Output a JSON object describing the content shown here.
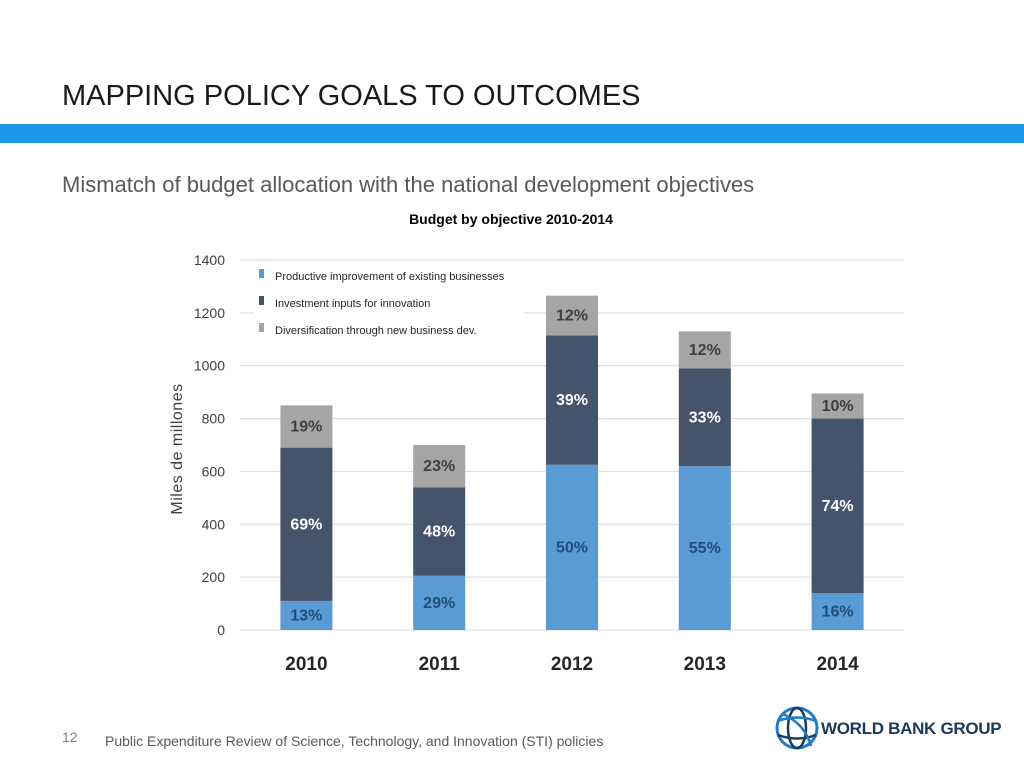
{
  "slide": {
    "title": "MAPPING POLICY GOALS TO OUTCOMES",
    "subtitle": "Mismatch of budget allocation with the national development objectives",
    "page_number": "12",
    "footer": "Public Expenditure Review of Science, Technology, and Innovation (STI) policies",
    "logo_text": "WORLD BANK GROUP"
  },
  "colors": {
    "accent_bar": "#1e96e8",
    "productive": "#5b9bd5",
    "investment": "#44546a",
    "diversification": "#a5a5a5"
  },
  "chart_data": {
    "type": "bar",
    "stacked": true,
    "title": "Budget by objective 2010-2014",
    "xlabel": "",
    "ylabel": "Miles de millones",
    "ylim": [
      0,
      1400
    ],
    "yticks": [
      0,
      200,
      400,
      600,
      800,
      1000,
      1200,
      1400
    ],
    "grid": true,
    "legend_position": "top-left",
    "categories": [
      "2010",
      "2011",
      "2012",
      "2013",
      "2014"
    ],
    "series": [
      {
        "name": "Productive improvement of existing businesses",
        "color": "#5b9bd5",
        "values": [
          110,
          205,
          625,
          620,
          140
        ],
        "labels": [
          "13%",
          "29%",
          "50%",
          "55%",
          "16%"
        ]
      },
      {
        "name": "Investment inputs for innovation",
        "color": "#44546a",
        "values": [
          580,
          335,
          490,
          370,
          660
        ],
        "labels": [
          "69%",
          "48%",
          "39%",
          "33%",
          "74%"
        ]
      },
      {
        "name": "Diversification through new business dev.",
        "color": "#a5a5a5",
        "values": [
          160,
          160,
          150,
          140,
          95
        ],
        "labels": [
          "19%",
          "23%",
          "12%",
          "12%",
          "10%"
        ]
      }
    ]
  }
}
